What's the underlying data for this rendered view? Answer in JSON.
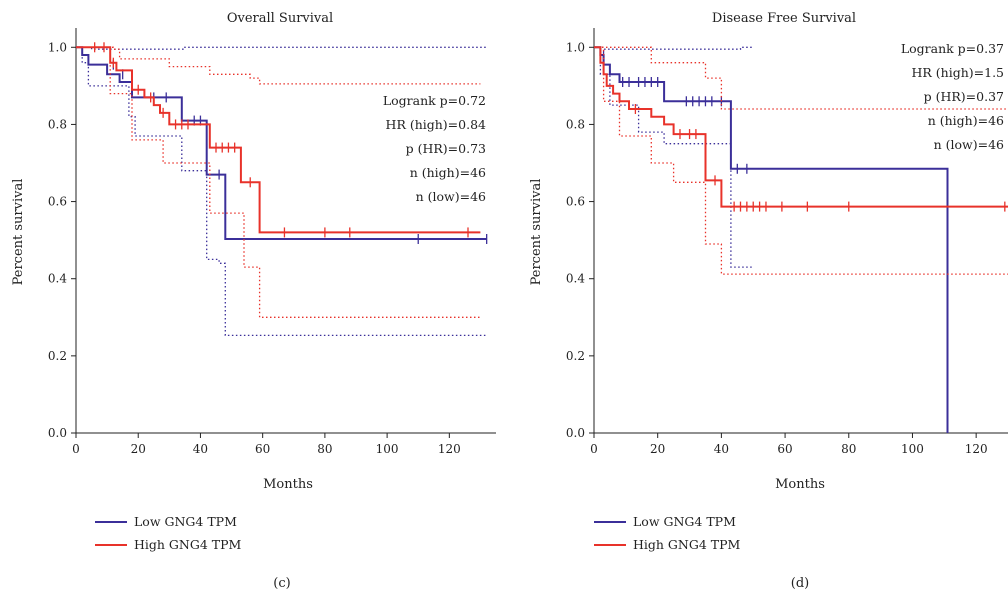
{
  "colors": {
    "low": "#3b2f99",
    "high": "#e8322a",
    "axis": "#222222"
  },
  "panels": [
    {
      "caption": "(c)",
      "chart_data": {
        "type": "line",
        "title": "Overall Survival",
        "xlabel": "Months",
        "ylabel": "Percent survival",
        "xlim": [
          0,
          135
        ],
        "ylim": [
          0,
          1.05
        ],
        "xticks": [
          "0",
          "20",
          "40",
          "60",
          "80",
          "100",
          "120"
        ],
        "yticks": [
          "0.0",
          "0.2",
          "0.4",
          "0.6",
          "0.8",
          "1.0"
        ],
        "annotations": [
          "Logrank p=0.72",
          "HR (high)=0.84",
          "p (HR)=0.73",
          "n (high)=46",
          "n (low)=46"
        ],
        "series": [
          {
            "name": "Low GNG4 TPM",
            "color": "low",
            "steps": [
              [
                0,
                1.0
              ],
              [
                2,
                0.98
              ],
              [
                4,
                0.955
              ],
              [
                10,
                0.93
              ],
              [
                14,
                0.91
              ],
              [
                18,
                0.87
              ],
              [
                34,
                0.81
              ],
              [
                42,
                0.67
              ],
              [
                48,
                0.503
              ],
              [
                132,
                0.503
              ]
            ],
            "censors": [
              [
                12,
                0.955
              ],
              [
                15,
                0.93
              ],
              [
                25,
                0.87
              ],
              [
                29,
                0.87
              ],
              [
                38,
                0.81
              ],
              [
                40,
                0.81
              ],
              [
                46,
                0.67
              ],
              [
                110,
                0.503
              ],
              [
                132,
                0.503
              ]
            ],
            "ci_upper": [
              [
                0,
                1.0
              ],
              [
                5,
                0.995
              ],
              [
                34,
                0.995
              ],
              [
                35,
                1.0
              ],
              [
                132,
                1.0
              ]
            ],
            "ci_lower": [
              [
                0,
                1.0
              ],
              [
                2,
                0.96
              ],
              [
                4,
                0.9
              ],
              [
                17,
                0.82
              ],
              [
                19,
                0.77
              ],
              [
                34,
                0.68
              ],
              [
                42,
                0.45
              ],
              [
                46,
                0.44
              ],
              [
                48,
                0.253
              ],
              [
                132,
                0.253
              ]
            ]
          },
          {
            "name": "High GNG4 TPM",
            "color": "high",
            "steps": [
              [
                0,
                1.0
              ],
              [
                11,
                0.96
              ],
              [
                13,
                0.94
              ],
              [
                18,
                0.89
              ],
              [
                22,
                0.87
              ],
              [
                25,
                0.85
              ],
              [
                27,
                0.83
              ],
              [
                30,
                0.8
              ],
              [
                43,
                0.74
              ],
              [
                53,
                0.65
              ],
              [
                59,
                0.52
              ],
              [
                130,
                0.52
              ]
            ],
            "censors": [
              [
                6,
                1.0
              ],
              [
                9,
                1.0
              ],
              [
                12,
                0.96
              ],
              [
                20,
                0.89
              ],
              [
                24,
                0.87
              ],
              [
                28,
                0.83
              ],
              [
                32,
                0.8
              ],
              [
                34,
                0.8
              ],
              [
                36,
                0.8
              ],
              [
                45,
                0.74
              ],
              [
                47,
                0.74
              ],
              [
                49,
                0.74
              ],
              [
                51,
                0.74
              ],
              [
                56,
                0.65
              ],
              [
                67,
                0.52
              ],
              [
                80,
                0.52
              ],
              [
                88,
                0.52
              ],
              [
                126,
                0.52
              ]
            ],
            "ci_upper": [
              [
                0,
                1.0
              ],
              [
                12,
                0.995
              ],
              [
                14,
                0.97
              ],
              [
                30,
                0.95
              ],
              [
                43,
                0.93
              ],
              [
                56,
                0.92
              ],
              [
                59,
                0.905
              ],
              [
                130,
                0.905
              ]
            ],
            "ci_lower": [
              [
                0,
                1.0
              ],
              [
                11,
                0.88
              ],
              [
                18,
                0.76
              ],
              [
                28,
                0.7
              ],
              [
                43,
                0.57
              ],
              [
                54,
                0.43
              ],
              [
                59,
                0.3
              ],
              [
                130,
                0.296
              ]
            ]
          }
        ]
      }
    },
    {
      "caption": "(d)",
      "chart_data": {
        "type": "line",
        "title": "Disease Free Survival",
        "xlabel": "Months",
        "ylabel": "Percent survival",
        "xlim": [
          0,
          130
        ],
        "ylim": [
          0,
          1.05
        ],
        "xticks": [
          "0",
          "20",
          "40",
          "60",
          "80",
          "100",
          "120"
        ],
        "yticks": [
          "0.0",
          "0.2",
          "0.4",
          "0.6",
          "0.8",
          "1.0"
        ],
        "annotations": [
          "Logrank p=0.37",
          "HR (high)=1.5",
          "p (HR)=0.37",
          "n (high)=46",
          "n (low)=46"
        ],
        "series": [
          {
            "name": "Low GNG4 TPM",
            "color": "low",
            "steps": [
              [
                0,
                1.0
              ],
              [
                2,
                0.98
              ],
              [
                3,
                0.955
              ],
              [
                5,
                0.93
              ],
              [
                8,
                0.91
              ],
              [
                22,
                0.86
              ],
              [
                43,
                0.685
              ],
              [
                111,
                0.0
              ]
            ],
            "censors": [
              [
                3,
                0.98
              ],
              [
                9,
                0.91
              ],
              [
                11,
                0.91
              ],
              [
                14,
                0.91
              ],
              [
                16,
                0.91
              ],
              [
                18,
                0.91
              ],
              [
                20,
                0.91
              ],
              [
                29,
                0.86
              ],
              [
                31,
                0.86
              ],
              [
                33,
                0.86
              ],
              [
                35,
                0.86
              ],
              [
                37,
                0.86
              ],
              [
                40,
                0.86
              ],
              [
                45,
                0.685
              ],
              [
                48,
                0.685
              ]
            ],
            "ci_upper": [
              [
                0,
                1.0
              ],
              [
                3,
                0.995
              ],
              [
                43,
                0.995
              ],
              [
                46,
                1.0
              ],
              [
                50,
                1.0
              ]
            ],
            "ci_lower": [
              [
                0,
                1.0
              ],
              [
                2,
                0.93
              ],
              [
                5,
                0.85
              ],
              [
                14,
                0.78
              ],
              [
                22,
                0.75
              ],
              [
                43,
                0.43
              ],
              [
                50,
                0.43
              ]
            ]
          },
          {
            "name": "High GNG4 TPM",
            "color": "high",
            "steps": [
              [
                0,
                1.0
              ],
              [
                2,
                0.96
              ],
              [
                3,
                0.93
              ],
              [
                4,
                0.9
              ],
              [
                6,
                0.88
              ],
              [
                8,
                0.86
              ],
              [
                11,
                0.84
              ],
              [
                18,
                0.82
              ],
              [
                22,
                0.8
              ],
              [
                25,
                0.775
              ],
              [
                35,
                0.655
              ],
              [
                40,
                0.587
              ],
              [
                130,
                0.587
              ]
            ],
            "censors": [
              [
                13,
                0.84
              ],
              [
                27,
                0.775
              ],
              [
                30,
                0.775
              ],
              [
                32,
                0.775
              ],
              [
                38,
                0.655
              ],
              [
                44,
                0.587
              ],
              [
                46,
                0.587
              ],
              [
                48,
                0.587
              ],
              [
                50,
                0.587
              ],
              [
                52,
                0.587
              ],
              [
                54,
                0.587
              ],
              [
                59,
                0.587
              ],
              [
                67,
                0.587
              ],
              [
                80,
                0.587
              ],
              [
                129,
                0.587
              ]
            ],
            "ci_upper": [
              [
                0,
                1.0
              ],
              [
                2,
                1.0
              ],
              [
                18,
                0.96
              ],
              [
                35,
                0.92
              ],
              [
                40,
                0.84
              ],
              [
                130,
                0.84
              ]
            ],
            "ci_lower": [
              [
                0,
                1.0
              ],
              [
                3,
                0.86
              ],
              [
                8,
                0.77
              ],
              [
                18,
                0.7
              ],
              [
                25,
                0.65
              ],
              [
                35,
                0.49
              ],
              [
                40,
                0.412
              ],
              [
                130,
                0.412
              ]
            ]
          }
        ]
      }
    }
  ]
}
